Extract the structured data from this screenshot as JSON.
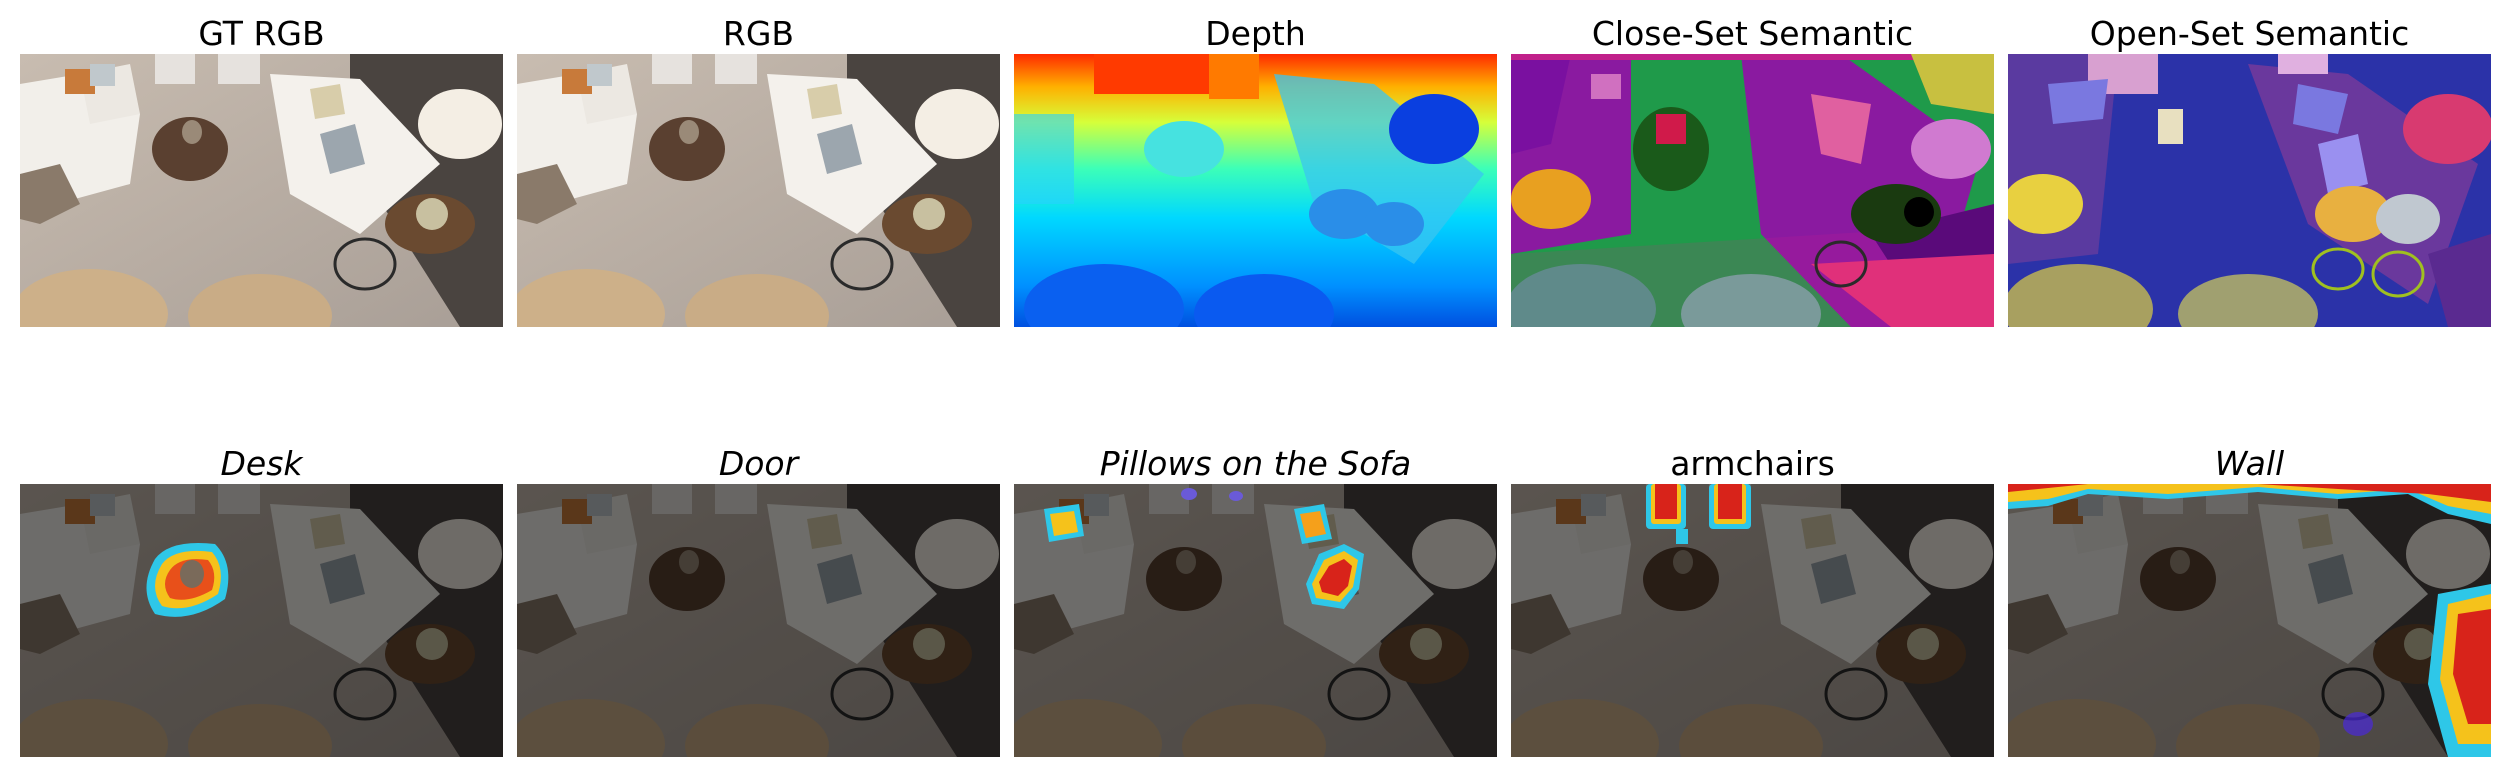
{
  "panels": [
    {
      "id": "gt-rgb",
      "title": "GT RGB",
      "italic": false
    },
    {
      "id": "rgb",
      "title": "RGB",
      "italic": false
    },
    {
      "id": "depth",
      "title": "Depth",
      "italic": false
    },
    {
      "id": "close-set-semantic",
      "title": "Close-Set Semantic",
      "italic": false
    },
    {
      "id": "open-set-semantic",
      "title": "Open-Set Semantic",
      "italic": false
    },
    {
      "id": "query-desk",
      "title": "Desk",
      "italic": true
    },
    {
      "id": "query-door",
      "title": "Door",
      "italic": true
    },
    {
      "id": "query-pillows",
      "title": "Pillows on the Sofa",
      "italic": true
    },
    {
      "id": "query-armchairs",
      "title": "armchairs",
      "italic": false
    },
    {
      "id": "query-wall",
      "title": "Wall",
      "italic": true
    }
  ],
  "colors": {
    "floor": "#b8aea6",
    "sofa": "#f2efea",
    "table": "#5a4030",
    "ottoman": "#cdb089",
    "dark_overlay": "#000000",
    "heat_hot": "#d8231a",
    "heat_mid": "#f5c21b",
    "heat_edge": "#2ec7e8"
  }
}
